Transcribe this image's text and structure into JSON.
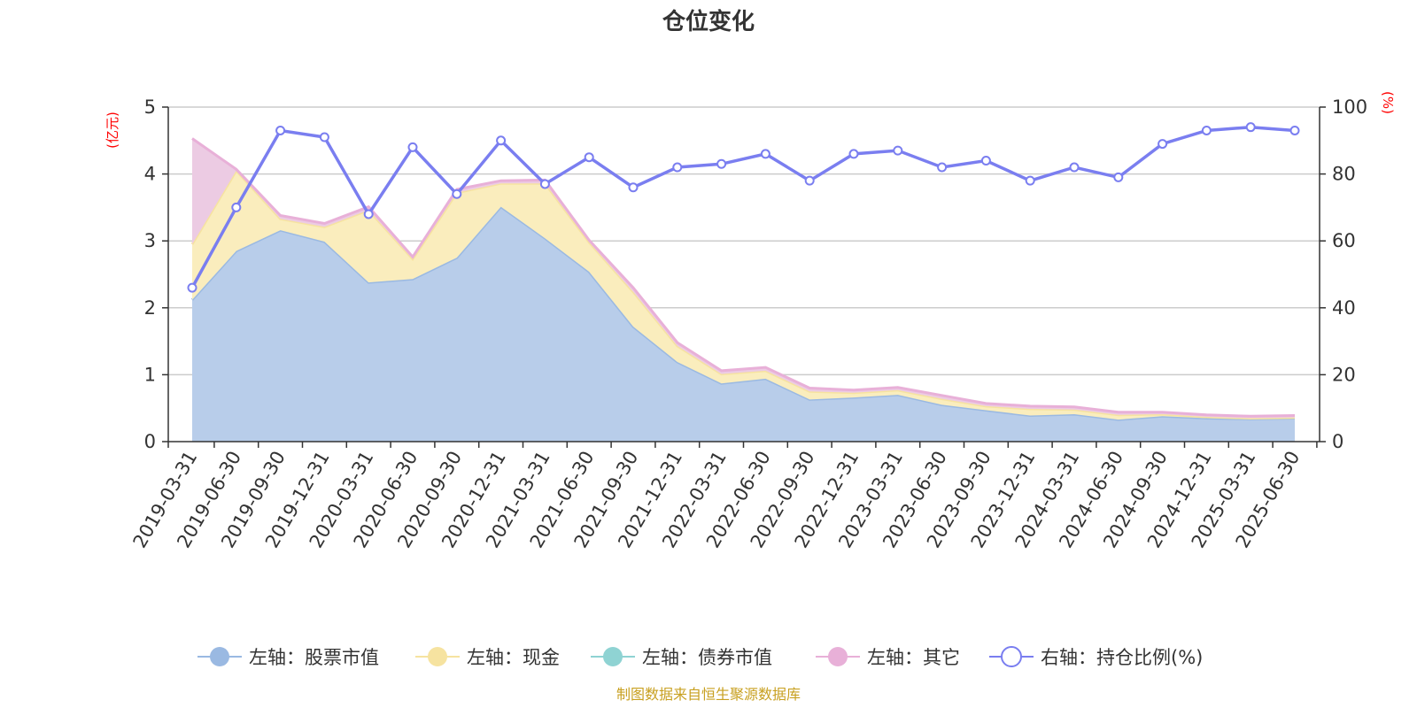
{
  "title": "仓位变化",
  "source": "制图数据来自恒生聚源数据库",
  "chart_data": {
    "type": "area",
    "title": "仓位变化",
    "x": [
      "2019-03-31",
      "2019-06-30",
      "2019-09-30",
      "2019-12-31",
      "2020-03-31",
      "2020-06-30",
      "2020-09-30",
      "2020-12-31",
      "2021-03-31",
      "2021-06-30",
      "2021-09-30",
      "2021-12-31",
      "2022-03-31",
      "2022-06-30",
      "2022-09-30",
      "2022-12-31",
      "2023-03-31",
      "2023-06-30",
      "2023-09-30",
      "2023-12-31",
      "2024-03-31",
      "2024-06-30",
      "2024-09-30",
      "2024-12-31",
      "2025-03-31",
      "2025-06-30"
    ],
    "y_left": {
      "label": "(亿元)",
      "lim": [
        0,
        5
      ],
      "ticks": [
        0,
        1,
        2,
        3,
        4,
        5
      ]
    },
    "y_right": {
      "label": "(%)",
      "lim": [
        0,
        100
      ],
      "ticks": [
        0,
        20,
        40,
        60,
        80,
        100
      ]
    },
    "grid": true,
    "legend_position": "bottom",
    "series": [
      {
        "name": "左轴：股票市值",
        "axis": "left",
        "stack": "area",
        "color": "#9ab9e2",
        "fill": "#b8cdea",
        "values": [
          2.12,
          2.85,
          3.16,
          2.99,
          2.38,
          2.43,
          2.75,
          3.51,
          3.04,
          2.54,
          1.72,
          1.19,
          0.87,
          0.94,
          0.63,
          0.66,
          0.7,
          0.55,
          0.47,
          0.39,
          0.41,
          0.33,
          0.38,
          0.35,
          0.34,
          0.35
        ]
      },
      {
        "name": "左轴：现金",
        "axis": "left",
        "stack": "area",
        "color": "#f6e3a0",
        "fill": "#faedbd",
        "values": [
          0.83,
          1.2,
          0.17,
          0.22,
          1.08,
          0.3,
          0.97,
          0.35,
          0.82,
          0.44,
          0.52,
          0.24,
          0.14,
          0.12,
          0.12,
          0.07,
          0.07,
          0.09,
          0.06,
          0.1,
          0.07,
          0.07,
          0.03,
          0.02,
          0.01,
          0.01
        ]
      },
      {
        "name": "左轴：债券市值",
        "axis": "left",
        "stack": "area",
        "color": "#8fd3d3",
        "fill": "#a9dcdc",
        "values": [
          0,
          0,
          0,
          0,
          0,
          0,
          0,
          0,
          0,
          0,
          0,
          0,
          0,
          0,
          0,
          0,
          0,
          0,
          0,
          0,
          0,
          0,
          0,
          0,
          0,
          0
        ]
      },
      {
        "name": "左轴：其它",
        "axis": "left",
        "stack": "area",
        "color": "#e8b0d8",
        "fill": "#eccbe3",
        "values": [
          1.58,
          0.02,
          0.05,
          0.05,
          0.05,
          0.03,
          0.05,
          0.04,
          0.05,
          0.03,
          0.06,
          0.05,
          0.05,
          0.05,
          0.05,
          0.04,
          0.04,
          0.05,
          0.04,
          0.04,
          0.04,
          0.04,
          0.03,
          0.03,
          0.03,
          0.03
        ]
      },
      {
        "name": "右轴：持仓比例(%)",
        "axis": "right",
        "stack": null,
        "color": "#7a7ef0",
        "values": [
          46,
          70,
          93,
          91,
          68,
          88,
          74,
          90,
          77,
          85,
          76,
          82,
          83,
          86,
          78,
          86,
          87,
          82,
          84,
          78,
          82,
          79,
          89,
          93,
          94,
          93
        ]
      }
    ]
  }
}
